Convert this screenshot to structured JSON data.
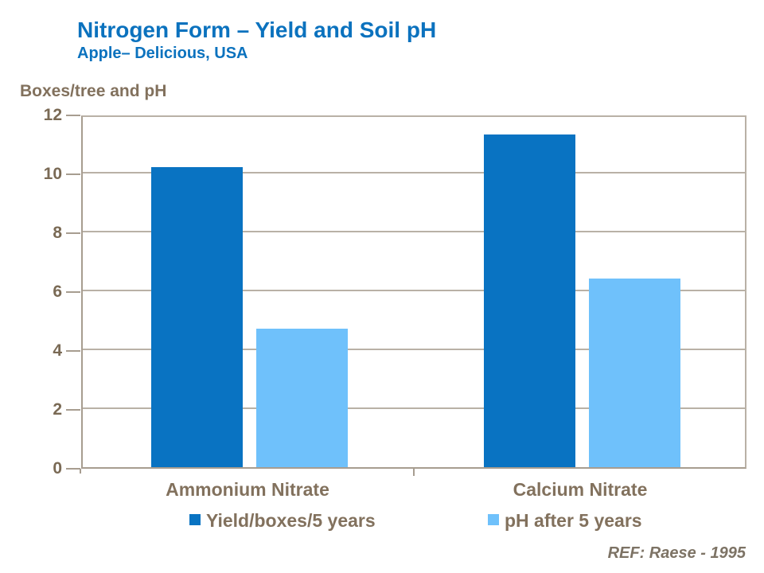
{
  "slide": {
    "title": "Nitrogen Form – Yield and Soil pH",
    "subtitle": "Apple– Delicious,  USA",
    "reference": "REF: Raese - 1995"
  },
  "chart_data": {
    "type": "bar",
    "title": "Boxes/tree and pH",
    "ylabel": "Boxes/tree and pH",
    "xlabel": "",
    "categories": [
      "Ammonium Nitrate",
      "Calcium Nitrate"
    ],
    "series": [
      {
        "name": "Yield/boxes/5 years",
        "color": "#0973c2",
        "values": [
          10.2,
          11.3
        ]
      },
      {
        "name": "pH after 5 years",
        "color": "#6fc1fb",
        "values": [
          4.7,
          6.4
        ]
      }
    ],
    "ylim": [
      0,
      12
    ],
    "yticks": [
      0,
      2,
      4,
      6,
      8,
      10,
      12
    ],
    "grid": true,
    "legend_position": "bottom"
  },
  "colors": {
    "title_blue": "#0b72be",
    "axis_text_brown": "#82715d",
    "gridline": "#b9b1a6",
    "axis_line": "#a79d90",
    "background": "#ffffff"
  }
}
